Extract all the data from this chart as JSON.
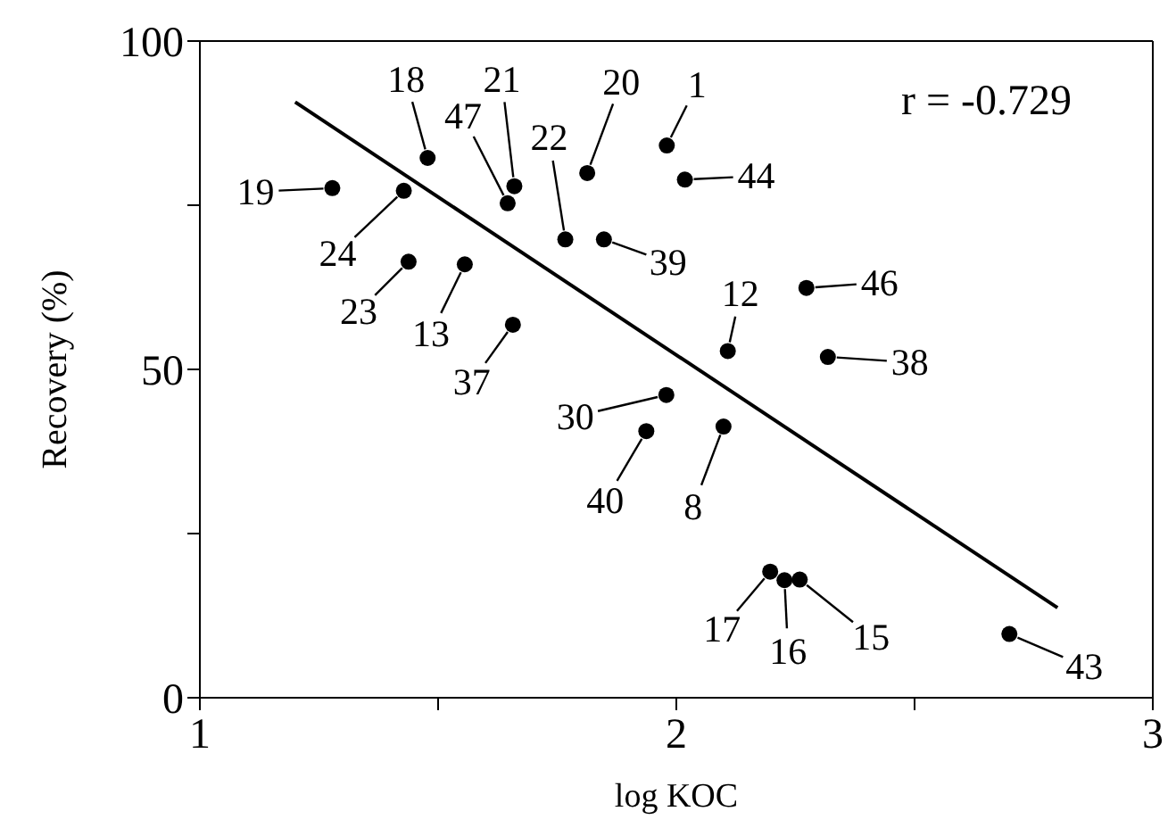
{
  "chart_data": {
    "type": "scatter",
    "xlabel": "log KOC",
    "ylabel": "Recovery (%)",
    "xlim": [
      1,
      3
    ],
    "xticks": [
      1,
      {
        "value": 1.5,
        "label": null
      },
      2,
      {
        "value": 2.5,
        "label": null
      },
      3
    ],
    "ylim": [
      0,
      100
    ],
    "yticks": [
      0,
      {
        "value": 25,
        "label": null
      },
      50,
      {
        "value": 75,
        "label": null
      },
      100
    ],
    "grid": false,
    "legend": false,
    "series": [
      {
        "color": "#000000",
        "marker": "circle",
        "x": [
          1.478,
          1.66,
          1.646,
          1.813,
          1.767,
          1.848,
          1.278,
          1.428,
          1.438,
          1.556,
          1.657,
          1.979,
          1.98,
          2.018,
          2.108,
          2.273,
          2.318,
          1.937,
          2.099,
          2.197,
          2.227,
          2.259,
          2.699
        ],
        "values": [
          82.2,
          77.9,
          75.3,
          79.9,
          69.8,
          69.8,
          77.6,
          77.2,
          66.4,
          66.0,
          56.8,
          46.1,
          84.1,
          78.9,
          52.8,
          62.4,
          51.9,
          40.6,
          41.3,
          19.2,
          17.9,
          18.0,
          9.7
        ]
      },
      {
        "type": "line",
        "color": "#000000",
        "marker": "none",
        "line_style": "solid",
        "x": [
          1.2,
          2.8
        ],
        "values": [
          90.7,
          13.7
        ]
      }
    ],
    "annotations": [
      {
        "text": "18",
        "x": 1.478,
        "y": 82.2
      },
      {
        "text": "21",
        "x": 1.66,
        "y": 77.9
      },
      {
        "text": "47",
        "x": 1.646,
        "y": 75.3
      },
      {
        "text": "20",
        "x": 1.813,
        "y": 79.9
      },
      {
        "text": "22",
        "x": 1.767,
        "y": 69.8
      },
      {
        "text": "39",
        "x": 1.848,
        "y": 69.8
      },
      {
        "text": "19",
        "x": 1.278,
        "y": 77.6
      },
      {
        "text": "24",
        "x": 1.428,
        "y": 77.2
      },
      {
        "text": "23",
        "x": 1.438,
        "y": 66.4
      },
      {
        "text": "13",
        "x": 1.556,
        "y": 66.0
      },
      {
        "text": "37",
        "x": 1.657,
        "y": 56.8
      },
      {
        "text": "30",
        "x": 1.979,
        "y": 46.1
      },
      {
        "text": "1",
        "x": 1.98,
        "y": 84.1
      },
      {
        "text": "44",
        "x": 2.018,
        "y": 78.9
      },
      {
        "text": "12",
        "x": 2.108,
        "y": 52.8
      },
      {
        "text": "46",
        "x": 2.273,
        "y": 62.4
      },
      {
        "text": "38",
        "x": 2.318,
        "y": 51.9
      },
      {
        "text": "40",
        "x": 1.937,
        "y": 40.6
      },
      {
        "text": "8",
        "x": 2.099,
        "y": 41.3
      },
      {
        "text": "17",
        "x": 2.197,
        "y": 19.2
      },
      {
        "text": "16",
        "x": 2.227,
        "y": 17.9
      },
      {
        "text": "15",
        "x": 2.259,
        "y": 18.0
      },
      {
        "text": "43",
        "x": 2.699,
        "y": 9.7
      },
      "r = -0.729"
    ]
  }
}
